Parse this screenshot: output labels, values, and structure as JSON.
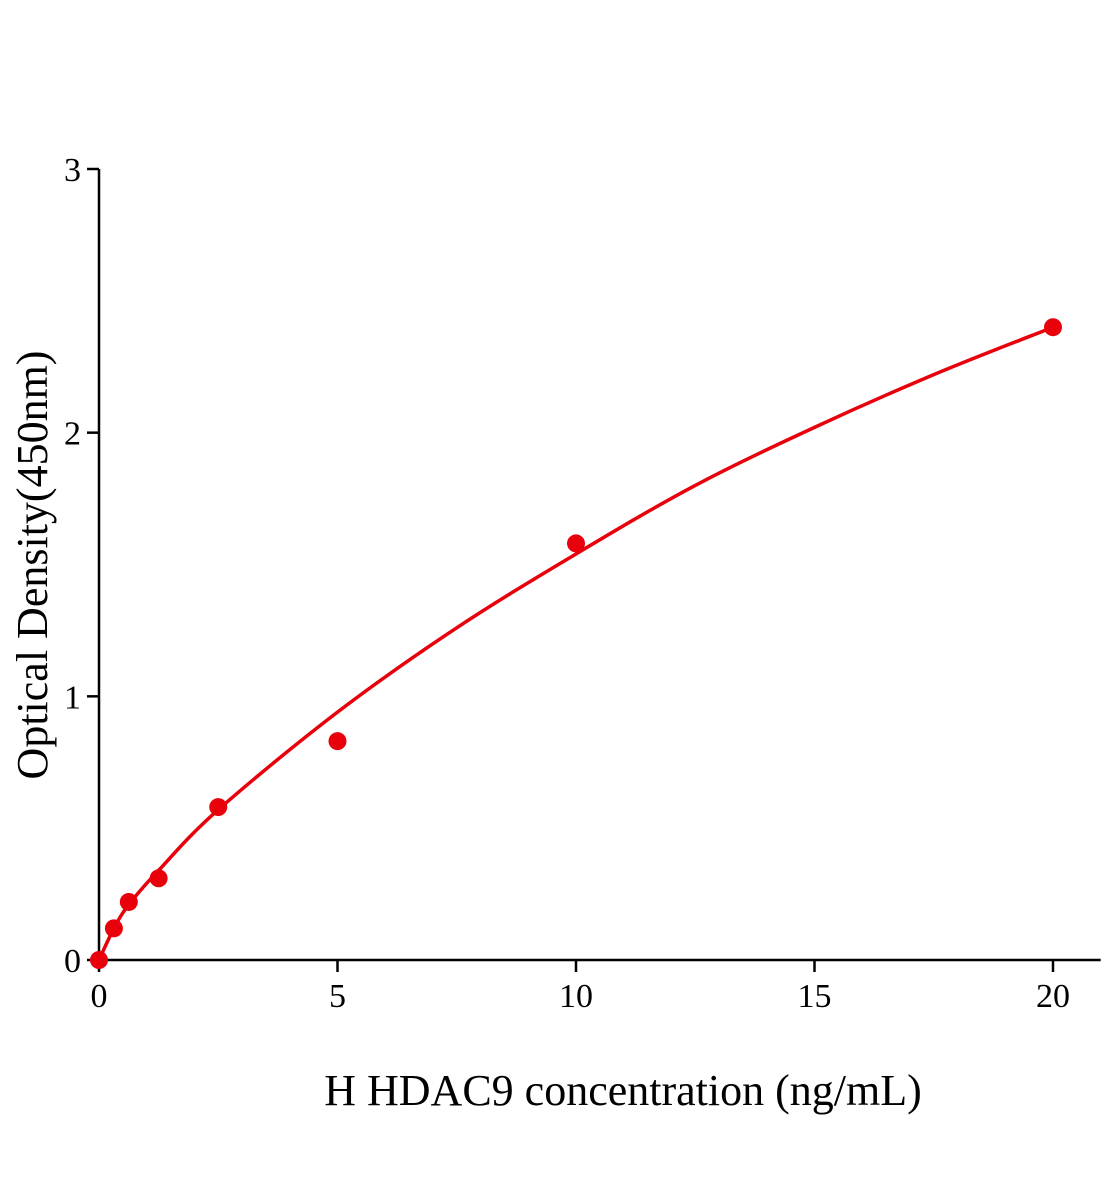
{
  "chart_data": {
    "type": "scatter",
    "title": "",
    "xlabel": "H HDAC9 concentration (ng/mL)",
    "ylabel": "Optical Density(450nm)",
    "xlim": [
      0,
      21
    ],
    "ylim": [
      0,
      3
    ],
    "xticks": [
      0,
      5,
      10,
      15,
      20
    ],
    "yticks": [
      0,
      1,
      2,
      3
    ],
    "grid": false,
    "legend": "none",
    "color": "#e8000b",
    "points": {
      "x": [
        0,
        0.3125,
        0.625,
        1.25,
        2.5,
        5,
        10,
        20
      ],
      "y": [
        0,
        0.12,
        0.22,
        0.31,
        0.58,
        0.83,
        1.58,
        2.4
      ]
    },
    "fit_curve": {
      "x": [
        0,
        0.3125,
        0.625,
        1.25,
        2.5,
        5,
        7.5,
        10,
        12.5,
        15,
        17.5,
        20
      ],
      "y": [
        0,
        0.12,
        0.21,
        0.34,
        0.57,
        0.94,
        1.26,
        1.54,
        1.8,
        2.02,
        2.22,
        2.4
      ]
    }
  }
}
